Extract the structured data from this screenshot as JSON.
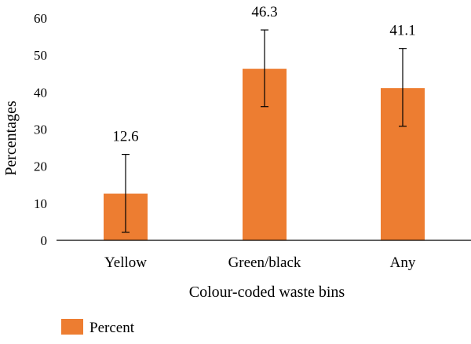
{
  "chart_data": {
    "type": "bar",
    "categories": [
      "Yellow",
      "Green/black",
      "Any"
    ],
    "series": [
      {
        "name": "Percent",
        "values": [
          12.6,
          46.3,
          41.1
        ],
        "error_low": [
          2.2,
          36.1,
          30.8
        ],
        "error_high": [
          23.2,
          56.8,
          51.8
        ],
        "color": "#ED7D31"
      }
    ],
    "data_labels": [
      "12.6",
      "46.3",
      "41.1"
    ],
    "xlabel": "Colour-coded waste bins",
    "ylabel": "Percentages",
    "ylim": [
      0,
      60
    ],
    "yticks": [
      0,
      10,
      20,
      30,
      40,
      50,
      60
    ],
    "grid": false,
    "legend": {
      "position": "bottom-left",
      "entries": [
        "Percent"
      ]
    }
  }
}
